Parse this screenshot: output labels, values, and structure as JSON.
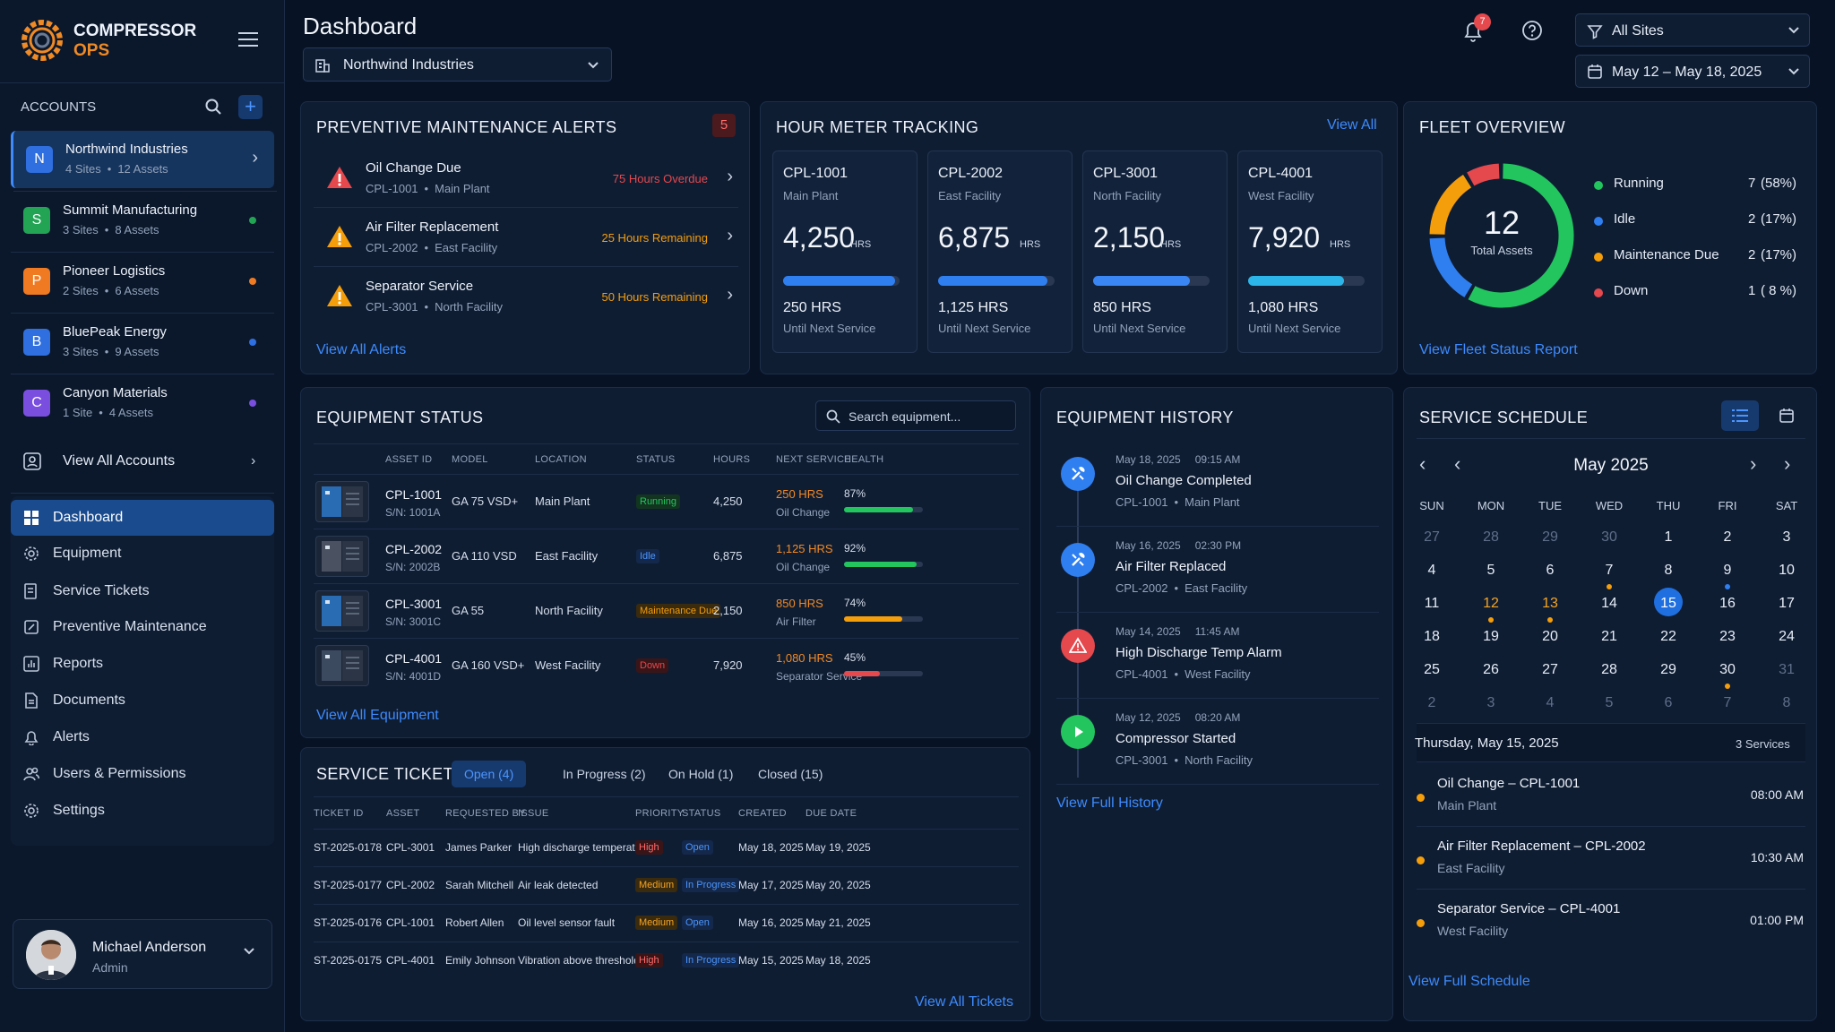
{
  "brand": {
    "line1": "COMPRESSOR",
    "line2": "OPS"
  },
  "accounts": {
    "title": "ACCOUNTS",
    "items": [
      {
        "letter": "N",
        "name": "Northwind Industries",
        "sites": "4 Sites",
        "assets": "12 Assets",
        "color": "#2f6fe0"
      },
      {
        "letter": "S",
        "name": "Summit Manufacturing",
        "sites": "3 Sites",
        "assets": "8 Assets",
        "color": "#22a454"
      },
      {
        "letter": "P",
        "name": "Pioneer Logistics",
        "sites": "2 Sites",
        "assets": "6 Assets",
        "color": "#f07a22"
      },
      {
        "letter": "B",
        "name": "BluePeak Energy",
        "sites": "3 Sites",
        "assets": "9 Assets",
        "color": "#2f6fe0"
      },
      {
        "letter": "C",
        "name": "Canyon Materials",
        "sites": "1 Site",
        "assets": "4 Assets",
        "color": "#7a4fe0"
      }
    ],
    "view_all": "View All Accounts"
  },
  "nav": [
    "Dashboard",
    "Equipment",
    "Service Tickets",
    "Preventive Maintenance",
    "Reports",
    "Documents",
    "Alerts",
    "Users & Permissions",
    "Settings"
  ],
  "user": {
    "name": "Michael Anderson",
    "role": "Admin"
  },
  "header": {
    "title": "Dashboard",
    "account_select": "Northwind Industries",
    "notif_count": "7",
    "site_filter": "All Sites",
    "date_range": "May 12 – May 18, 2025"
  },
  "pm_alerts": {
    "title": "PREVENTIVE MAINTENANCE ALERTS",
    "count": "5",
    "items": [
      {
        "title": "Oil Change Due",
        "asset": "CPL-1001",
        "site": "Main Plant",
        "status": "75 Hours Overdue",
        "color": "#e5484d",
        "icon": "#e5484d"
      },
      {
        "title": "Air Filter Replacement",
        "asset": "CPL-2002",
        "site": "East Facility",
        "status": "25 Hours Remaining",
        "color": "#f59e0b",
        "icon": "#f59e0b"
      },
      {
        "title": "Separator Service",
        "asset": "CPL-3001",
        "site": "North Facility",
        "status": "50 Hours Remaining",
        "color": "#f59e0b",
        "icon": "#f59e0b"
      }
    ],
    "view_all": "View All Alerts"
  },
  "hour_meter": {
    "title": "HOUR METER TRACKING",
    "view_all": "View All",
    "unit": "HRS",
    "items": [
      {
        "id": "CPL-1001",
        "site": "Main Plant",
        "hours": "4,250",
        "fill": 0.96,
        "next": "250 HRS",
        "next_label": "Until Next Service",
        "color": "#2f7ff0"
      },
      {
        "id": "CPL-2002",
        "site": "East Facility",
        "hours": "6,875",
        "fill": 0.94,
        "next": "1,125 HRS",
        "next_label": "Until Next Service",
        "color": "#2f7ff0"
      },
      {
        "id": "CPL-3001",
        "site": "North Facility",
        "hours": "2,150",
        "fill": 0.83,
        "next": "850 HRS",
        "next_label": "Until Next Service",
        "color": "#3a86f5"
      },
      {
        "id": "CPL-4001",
        "site": "West Facility",
        "hours": "7,920",
        "fill": 0.82,
        "next": "1,080 HRS",
        "next_label": "Until Next Service",
        "color": "#2cb5e8"
      }
    ]
  },
  "fleet": {
    "title": "FLEET OVERVIEW",
    "total": "12",
    "total_label": "Total Assets",
    "items": [
      {
        "label": "Running",
        "count": "7",
        "pct": "(58%)",
        "value": 7,
        "color": "#22c55e"
      },
      {
        "label": "Idle",
        "count": "2",
        "pct": "(17%)",
        "value": 2,
        "color": "#2f7ff0"
      },
      {
        "label": "Maintenance Due",
        "count": "2",
        "pct": "(17%)",
        "value": 2,
        "color": "#f59e0b"
      },
      {
        "label": "Down",
        "count": "1",
        "pct": "( 8 %)",
        "value": 1,
        "color": "#e5484d"
      }
    ],
    "link": "View Fleet Status Report"
  },
  "equipment": {
    "title": "EQUIPMENT STATUS",
    "search_placeholder": "Search equipment...",
    "headers": [
      "ASSET ID",
      "MODEL",
      "LOCATION",
      "STATUS",
      "HOURS",
      "NEXT SERVICE",
      "HEALTH"
    ],
    "rows": [
      {
        "id": "CPL-1001",
        "sn": "S/N: 1001A",
        "model": "GA 75 VSD+",
        "loc": "Main Plant",
        "status": "Running",
        "sc": "#22c55e",
        "sbg": "#12351f",
        "hours": "4,250",
        "next": "250 HRS",
        "next_sub": "Oil Change",
        "health": "87%",
        "hv": 0.87,
        "hc": "#22c55e",
        "img": "#2a6cb3"
      },
      {
        "id": "CPL-2002",
        "sn": "S/N: 2002B",
        "model": "GA 110 VSD",
        "loc": "East Facility",
        "status": "Idle",
        "sc": "#4c95ff",
        "sbg": "#13284a",
        "hours": "6,875",
        "next": "1,125 HRS",
        "next_sub": "Oil Change",
        "health": "92%",
        "hv": 0.92,
        "hc": "#22c55e",
        "img": "#4a5262"
      },
      {
        "id": "CPL-3001",
        "sn": "S/N: 3001C",
        "model": "GA 55",
        "loc": "North Facility",
        "status": "Maintenance Due",
        "sc": "#f59e0b",
        "sbg": "#3a2a0e",
        "hours": "2,150",
        "next": "850 HRS",
        "next_sub": "Air Filter",
        "health": "74%",
        "hv": 0.74,
        "hc": "#f59e0b",
        "img": "#2a6cb3"
      },
      {
        "id": "CPL-4001",
        "sn": "S/N: 4001D",
        "model": "GA 160 VSD+",
        "loc": "West Facility",
        "status": "Down",
        "sc": "#e5484d",
        "sbg": "#3a1518",
        "hours": "7,920",
        "next": "1,080 HRS",
        "next_sub": "Separator Service",
        "health": "45%",
        "hv": 0.45,
        "hc": "#e5484d",
        "img": "#3c4a60"
      }
    ],
    "view_all": "View All Equipment"
  },
  "history": {
    "title": "EQUIPMENT HISTORY",
    "items": [
      {
        "date": "May 18, 2025",
        "time": "09:15 AM",
        "title": "Oil Change Completed",
        "asset": "CPL-1001",
        "site": "Main Plant",
        "color": "#2f7ff0",
        "icon": "wrench"
      },
      {
        "date": "May 16, 2025",
        "time": "02:30 PM",
        "title": "Air Filter Replaced",
        "asset": "CPL-2002",
        "site": "East Facility",
        "color": "#2f7ff0",
        "icon": "wrench"
      },
      {
        "date": "May 14, 2025",
        "time": "11:45 AM",
        "title": "High Discharge Temp Alarm",
        "asset": "CPL-4001",
        "site": "West Facility",
        "color": "#e5484d",
        "icon": "alert"
      },
      {
        "date": "May 12, 2025",
        "time": "08:20 AM",
        "title": "Compressor Started",
        "asset": "CPL-3001",
        "site": "North Facility",
        "color": "#22c55e",
        "icon": "play"
      }
    ],
    "link": "View Full History"
  },
  "schedule": {
    "title": "SERVICE SCHEDULE",
    "month": "May 2025",
    "days": [
      "SUN",
      "MON",
      "TUE",
      "WED",
      "THU",
      "FRI",
      "SAT"
    ],
    "weeks": [
      [
        "27",
        "28",
        "29",
        "30",
        "1",
        "2",
        "3"
      ],
      [
        "4",
        "5",
        "6",
        "7",
        "8",
        "9",
        "10"
      ],
      [
        "11",
        "12",
        "13",
        "14",
        "15",
        "16",
        "17"
      ],
      [
        "18",
        "19",
        "20",
        "21",
        "22",
        "23",
        "24"
      ],
      [
        "25",
        "26",
        "27",
        "28",
        "29",
        "30",
        "31"
      ],
      [
        "2",
        "3",
        "4",
        "5",
        "6",
        "7",
        "8"
      ]
    ],
    "selected_day": "Thursday, May 15, 2025",
    "services_count": "3 Services",
    "items": [
      {
        "title": "Oil Change – CPL-1001",
        "site": "Main Plant",
        "time": "08:00 AM"
      },
      {
        "title": "Air Filter Replacement – CPL-2002",
        "site": "East Facility",
        "time": "10:30 AM"
      },
      {
        "title": "Separator Service – CPL-4001",
        "site": "West Facility",
        "time": "01:00 PM"
      }
    ],
    "link": "View Full Schedule"
  },
  "tickets": {
    "title": "SERVICE TICKETS",
    "tabs": [
      "Open (4)",
      "In Progress (2)",
      "On Hold (1)",
      "Closed (15)"
    ],
    "headers": [
      "TICKET ID",
      "ASSET",
      "REQUESTED BY",
      "ISSUE",
      "PRIORITY",
      "STATUS",
      "CREATED",
      "DUE DATE"
    ],
    "rows": [
      {
        "id": "ST-2025-0178",
        "asset": "CPL-3001",
        "by": "James Parker",
        "issue": "High discharge temperature",
        "prio": "High",
        "status": "Open",
        "created": "May 18, 2025",
        "due": "May 19, 2025"
      },
      {
        "id": "ST-2025-0177",
        "asset": "CPL-2002",
        "by": "Sarah Mitchell",
        "issue": "Air leak detected",
        "prio": "Medium",
        "status": "In Progress",
        "created": "May 17, 2025",
        "due": "May 20, 2025"
      },
      {
        "id": "ST-2025-0176",
        "asset": "CPL-1001",
        "by": "Robert Allen",
        "issue": "Oil level sensor fault",
        "prio": "Medium",
        "status": "Open",
        "created": "May 16, 2025",
        "due": "May 21, 2025"
      },
      {
        "id": "ST-2025-0175",
        "asset": "CPL-4001",
        "by": "Emily Johnson",
        "issue": "Vibration above threshold",
        "prio": "High",
        "status": "In Progress",
        "created": "May 15, 2025",
        "due": "May 18, 2025"
      }
    ],
    "view_all": "View All Tickets"
  }
}
